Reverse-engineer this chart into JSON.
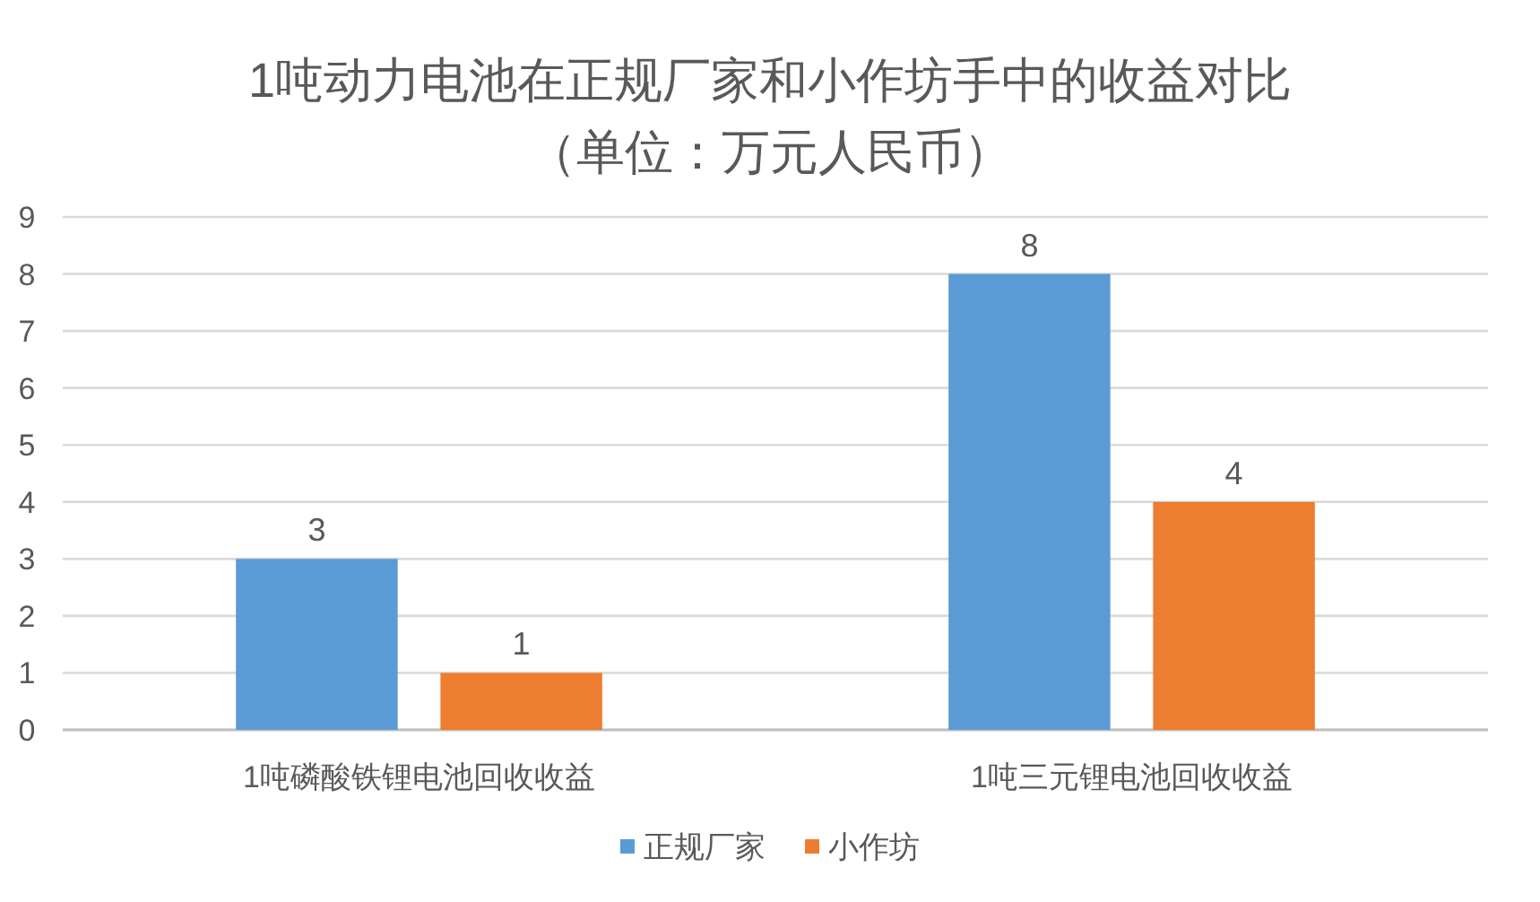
{
  "chart_data": {
    "type": "bar",
    "title": "1吨动力电池在正规厂家和小作坊手中的收益对比",
    "subtitle": "（单位：万元人民币）",
    "categories": [
      "1吨磷酸铁锂电池回收收益",
      "1吨三元锂电池回收收益"
    ],
    "series": [
      {
        "name": "正规厂家",
        "color": "#5b9bd5",
        "values": [
          3,
          8
        ]
      },
      {
        "name": "小作坊",
        "color": "#ed7d31",
        "values": [
          1,
          4
        ]
      }
    ],
    "ylim": [
      0,
      9
    ],
    "yticks": [
      0,
      1,
      2,
      3,
      4,
      5,
      6,
      7,
      8,
      9
    ],
    "grid": "y",
    "legend": "bottom",
    "data_labels": true
  }
}
